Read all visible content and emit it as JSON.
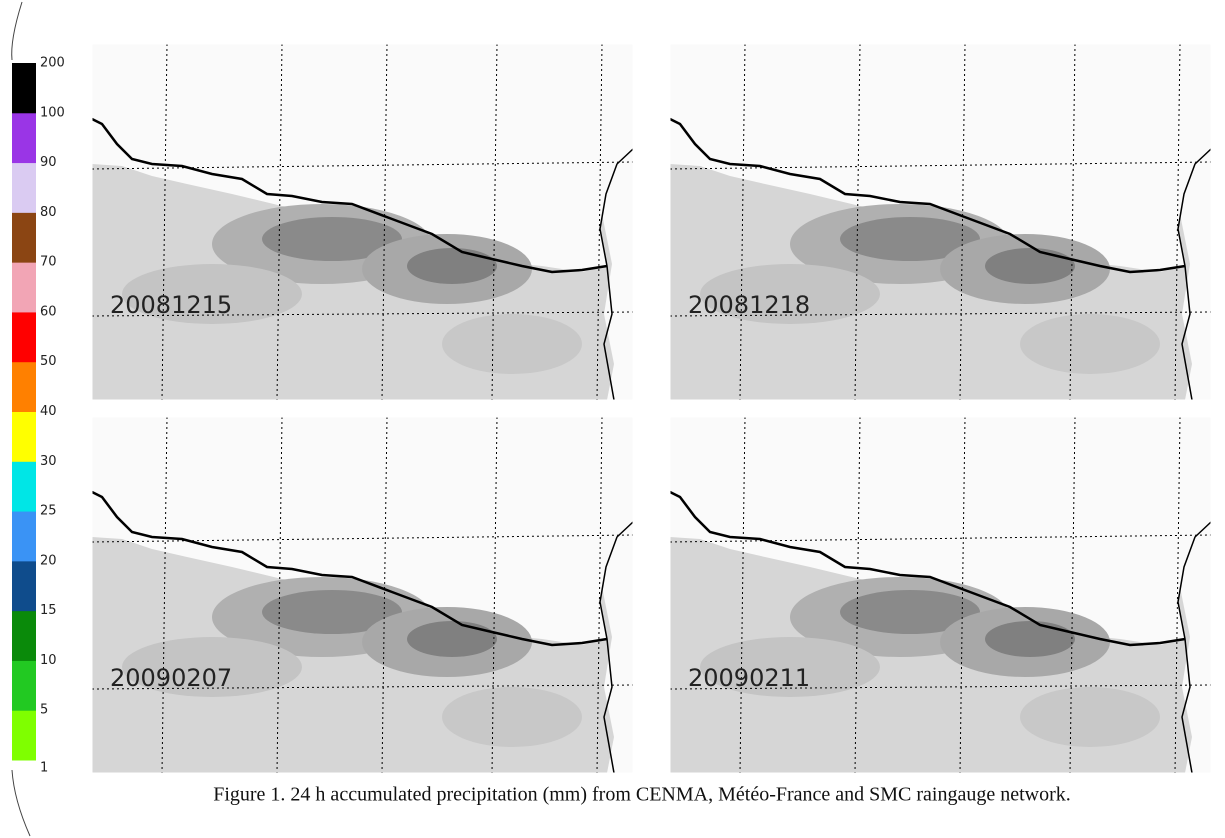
{
  "colorbar": {
    "colors": [
      "#7fff00",
      "#22c922",
      "#0a8a0a",
      "#0f4c8c",
      "#3a93f5",
      "#00e6e6",
      "#ffff00",
      "#ff8000",
      "#ff0000",
      "#f2a5b5",
      "#8b4513",
      "#dacbf2",
      "#9a35e6",
      "#000000"
    ],
    "labels": [
      "1",
      "5",
      "10",
      "15",
      "20",
      "25",
      "30",
      "40",
      "50",
      "60",
      "70",
      "80",
      "90",
      "100",
      "200"
    ]
  },
  "panels": [
    {
      "label": "20081215"
    },
    {
      "label": "20081218"
    },
    {
      "label": "20090207"
    },
    {
      "label": "20090211"
    }
  ],
  "caption": "Figure 1. 24 h accumulated precipitation (mm) from CENMA, Météo-France and SMC raingauge network."
}
